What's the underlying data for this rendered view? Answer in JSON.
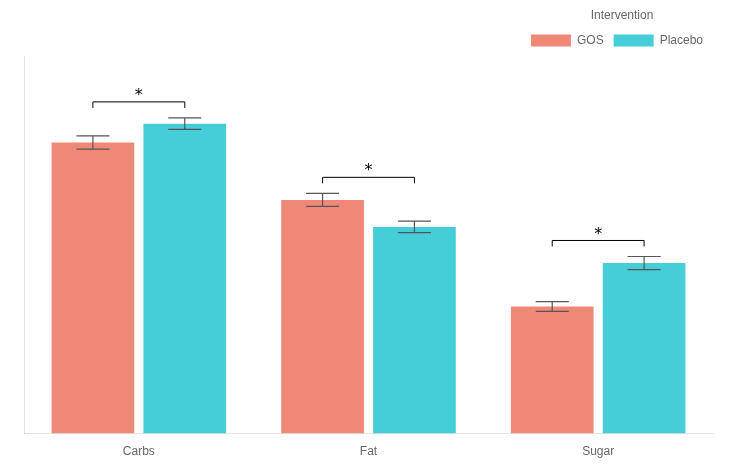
{
  "chart_data": {
    "type": "bar",
    "categories": [
      "Carbs",
      "Fat",
      "Sugar"
    ],
    "series": [
      {
        "name": "GOS",
        "color": "#F08878",
        "values": [
          3.55,
          2.85,
          1.55
        ],
        "errors": [
          0.08,
          0.08,
          0.06
        ]
      },
      {
        "name": "Placebo",
        "color": "#45CDD8",
        "values": [
          3.78,
          2.52,
          2.08
        ],
        "errors": [
          0.07,
          0.07,
          0.08
        ]
      }
    ],
    "legend_title": "Intervention",
    "legend": "upper right",
    "ylim": [
      0,
      4.6
    ],
    "tick_labels": "x",
    "grid": false,
    "annotations": [
      {
        "category": "Carbs",
        "text": "*"
      },
      {
        "category": "Fat",
        "text": "*"
      },
      {
        "category": "Sugar",
        "text": "*"
      }
    ]
  }
}
